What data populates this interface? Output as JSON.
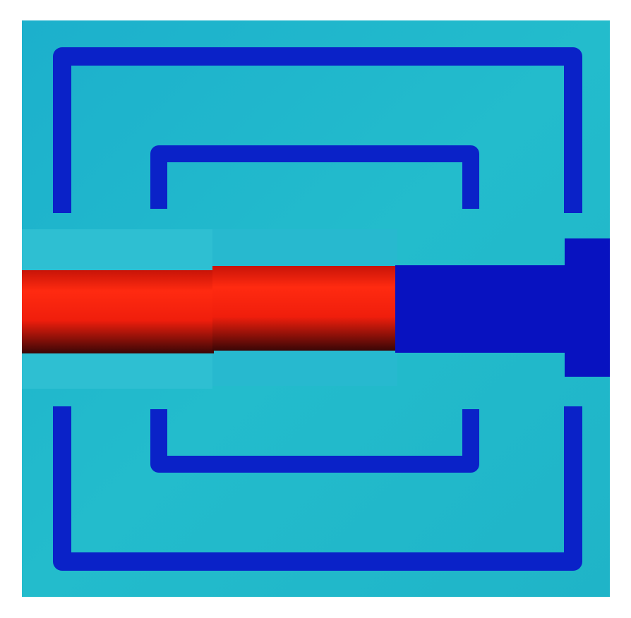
{
  "colors": {
    "background": "#ffffff",
    "substrate": "#1fb8cc",
    "substrate_light": "#35c6d8",
    "metal_trace": "#0a22c8",
    "metal_trace_dark": "#0416a8",
    "feed_line_hot": "#ff2a10",
    "feed_line_shadow": "#3a0606",
    "feed_line_cold": "#0812c0"
  },
  "structure": {
    "description_visible_text": "",
    "outer_rings": 2,
    "halves": [
      "top",
      "bottom"
    ],
    "feed_line_segments": [
      "hot-left",
      "hot-middle",
      "cold-right"
    ]
  }
}
